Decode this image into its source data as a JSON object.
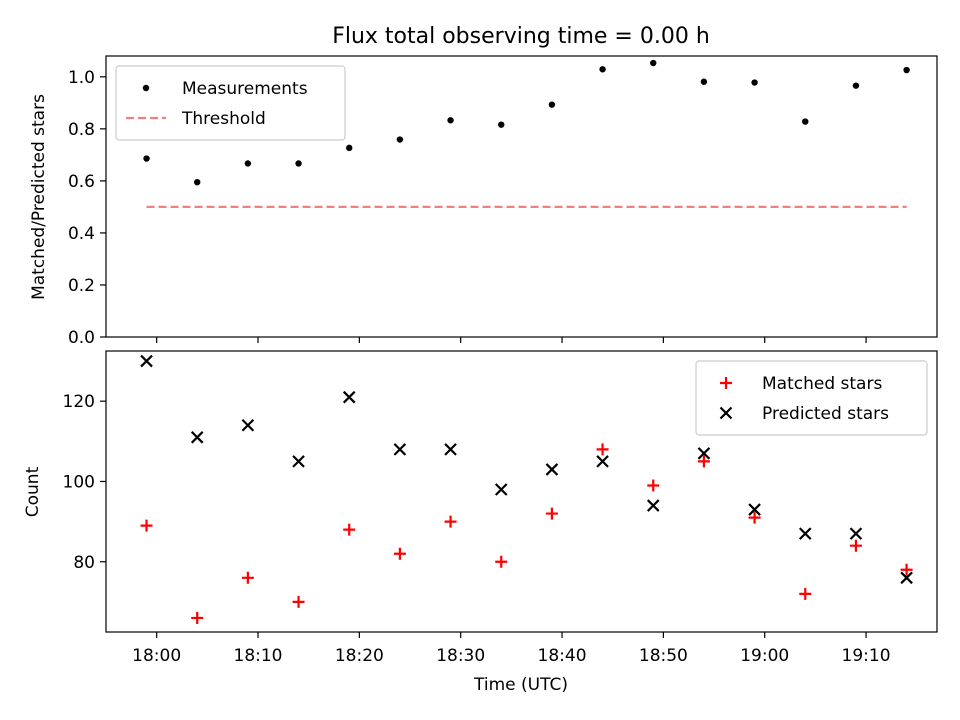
{
  "title": "Flux total observing time = 0.00 h",
  "chart_data": [
    {
      "type": "scatter",
      "ylabel": "Matched/Predicted stars",
      "ylim": [
        0,
        1.08
      ],
      "yticks": [
        0.0,
        0.2,
        0.4,
        0.6,
        0.8,
        1.0
      ],
      "ytick_labels": [
        "0.0",
        "0.2",
        "0.4",
        "0.6",
        "0.8",
        "1.0"
      ],
      "legend_position": "top-left",
      "series": [
        {
          "name": "Measurements",
          "marker": "dot",
          "color": "#000000",
          "x": [
            "17:59",
            "18:04",
            "18:09",
            "18:14",
            "18:19",
            "18:24",
            "18:29",
            "18:34",
            "18:39",
            "18:44",
            "18:49",
            "18:54",
            "18:59",
            "19:04",
            "19:09",
            "19:14"
          ],
          "values": [
            0.686,
            0.595,
            0.667,
            0.667,
            0.727,
            0.759,
            0.833,
            0.816,
            0.893,
            1.029,
            1.053,
            0.981,
            0.978,
            0.828,
            0.966,
            1.026
          ]
        },
        {
          "name": "Threshold",
          "style": "dashed-line",
          "color": "#f08080",
          "x": [
            "17:59",
            "19:14"
          ],
          "values": [
            0.5,
            0.5
          ]
        }
      ]
    },
    {
      "type": "scatter",
      "xlabel": "Time (UTC)",
      "ylabel": "Count",
      "ylim": [
        62.5,
        132.5
      ],
      "yticks": [
        80,
        100,
        120
      ],
      "ytick_labels": [
        "80",
        "100",
        "120"
      ],
      "xlim": [
        "17:55",
        "19:17"
      ],
      "xticks": [
        "18:00",
        "18:10",
        "18:20",
        "18:30",
        "18:40",
        "18:50",
        "19:00",
        "19:10"
      ],
      "legend_position": "top-right",
      "series": [
        {
          "name": "Matched stars",
          "marker": "plus",
          "color": "#ff0000",
          "x": [
            "17:59",
            "18:04",
            "18:09",
            "18:14",
            "18:19",
            "18:24",
            "18:29",
            "18:34",
            "18:39",
            "18:44",
            "18:49",
            "18:54",
            "18:59",
            "19:04",
            "19:09",
            "19:14"
          ],
          "values": [
            89,
            66,
            76,
            70,
            88,
            82,
            90,
            80,
            92,
            108,
            99,
            105,
            91,
            72,
            84,
            78
          ]
        },
        {
          "name": "Predicted stars",
          "marker": "x",
          "color": "#000000",
          "x": [
            "17:59",
            "18:04",
            "18:09",
            "18:14",
            "18:19",
            "18:24",
            "18:29",
            "18:34",
            "18:39",
            "18:44",
            "18:49",
            "18:54",
            "18:59",
            "19:04",
            "19:09",
            "19:14"
          ],
          "values": [
            130,
            111,
            114,
            105,
            121,
            108,
            108,
            98,
            103,
            105,
            94,
            107,
            93,
            87,
            87,
            76
          ]
        }
      ]
    }
  ]
}
